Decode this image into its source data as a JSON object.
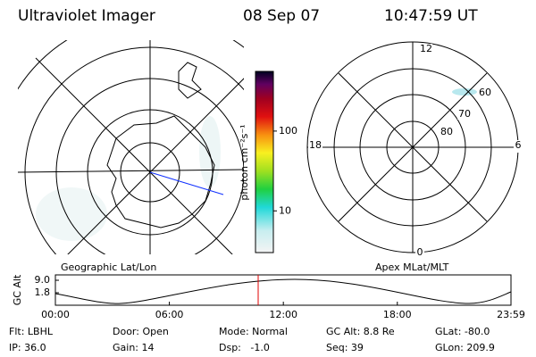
{
  "header": {
    "instrument": "Ultraviolet Imager",
    "date": "08 Sep 07",
    "time": "10:47:59 UT"
  },
  "left_panel": {
    "label": "Geographic Lat/Lon"
  },
  "right_panel": {
    "label": "Apex MLat/MLT",
    "mlt_labels": [
      "12",
      "18",
      "6",
      "0"
    ],
    "mlat_labels": [
      "60",
      "70",
      "80"
    ]
  },
  "colorbar": {
    "label": "photon cm⁻²s⁻¹",
    "log": true,
    "lim": [
      3,
      560
    ],
    "ticks": [
      10,
      100
    ]
  },
  "altitude_plot": {
    "ylabel": "GC Alt",
    "ylim": [
      -5.4,
      12.1
    ],
    "yticks": [
      {
        "value": 9,
        "label": "9.0"
      },
      1.8
    ],
    "xlim": [
      0,
      23.983
    ],
    "xticks": [
      {
        "value": 0,
        "label": "00:00"
      },
      {
        "value": 6,
        "label": "06:00"
      },
      {
        "value": 12,
        "label": "12:00"
      },
      {
        "value": 18,
        "label": "18:00"
      },
      {
        "value": 23.983,
        "label": "23:59"
      }
    ]
  },
  "status": [
    [
      "Flt: LBHL",
      "Door: Open",
      "Mode: Normal",
      "GC Alt: 8.8 Re",
      "GLat: -80.0"
    ],
    [
      "IP: 36.0",
      "Gain: 14",
      "Dsp:   -1.0",
      "Seq: 39",
      "GLon: 209.9"
    ]
  ]
}
